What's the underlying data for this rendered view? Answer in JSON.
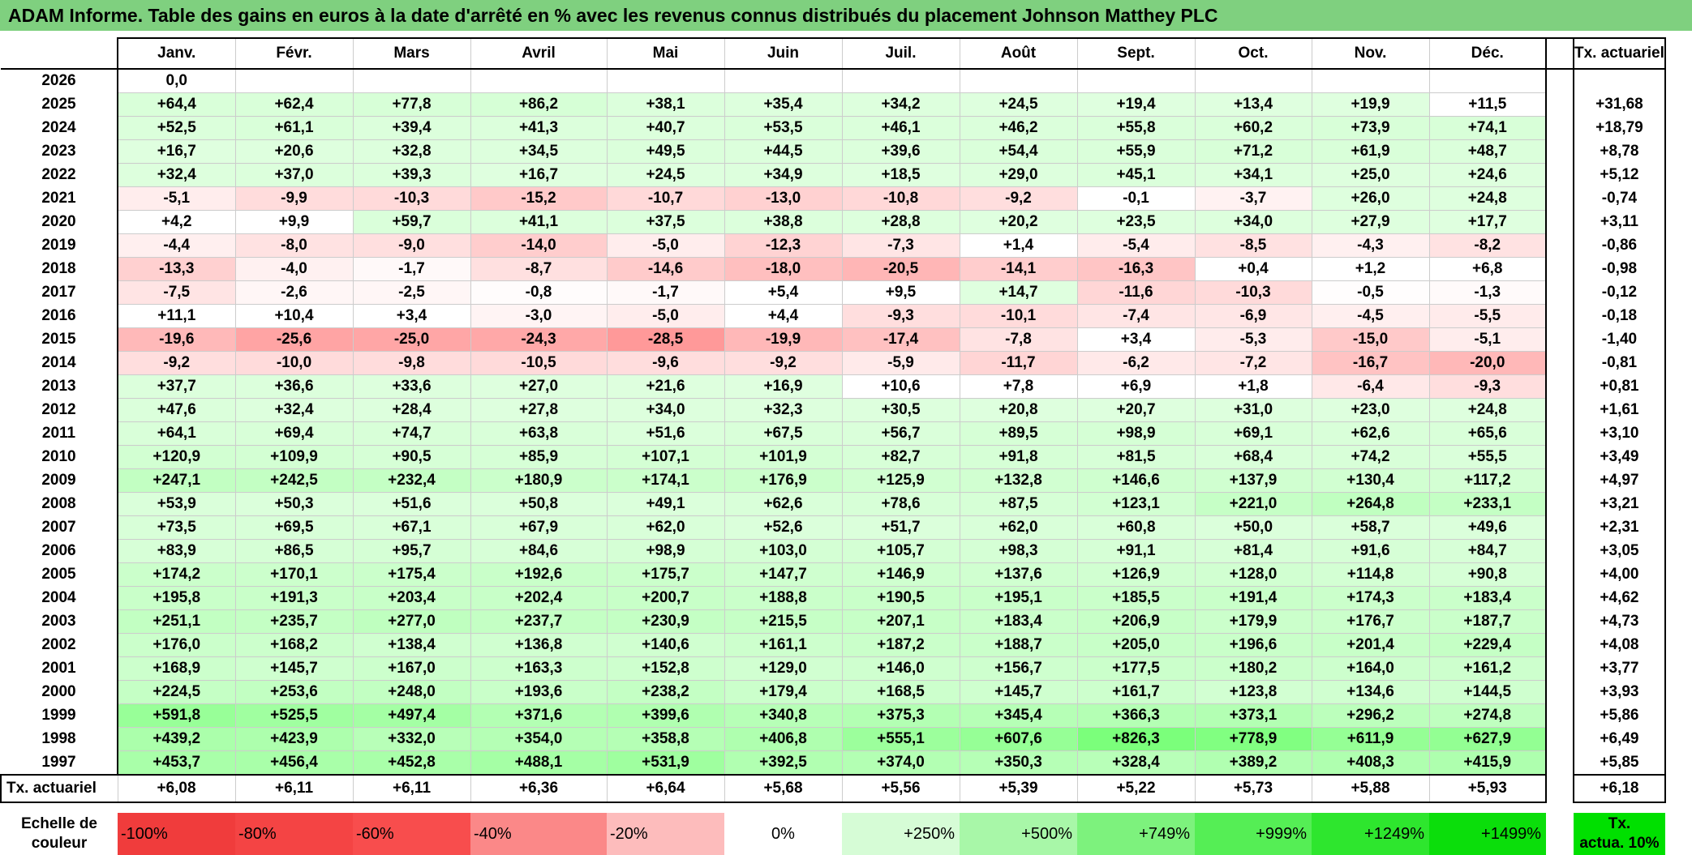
{
  "title": "ADAM Informe. Table des gains en euros à la date d'arrêté en % avec les revenus connus distribués du placement Johnson Matthey PLC",
  "months": [
    "Janv.",
    "Févr.",
    "Mars",
    "Avril",
    "Mai",
    "Juin",
    "Juil.",
    "Août",
    "Sept.",
    "Oct.",
    "Nov.",
    "Déc."
  ],
  "tx_header": "Tx. actuariel",
  "rows": [
    {
      "year": "2026",
      "values": [
        "0,0",
        "",
        "",
        "",
        "",
        "",
        "",
        "",
        "",
        "",
        "",
        ""
      ],
      "tx": ""
    },
    {
      "year": "2025",
      "values": [
        "+64,4",
        "+62,4",
        "+77,8",
        "+86,2",
        "+38,1",
        "+35,4",
        "+34,2",
        "+24,5",
        "+19,4",
        "+13,4",
        "+19,9",
        "+11,5"
      ],
      "tx": "+31,68"
    },
    {
      "year": "2024",
      "values": [
        "+52,5",
        "+61,1",
        "+39,4",
        "+41,3",
        "+40,7",
        "+53,5",
        "+46,1",
        "+46,2",
        "+55,8",
        "+60,2",
        "+73,9",
        "+74,1"
      ],
      "tx": "+18,79"
    },
    {
      "year": "2023",
      "values": [
        "+16,7",
        "+20,6",
        "+32,8",
        "+34,5",
        "+49,5",
        "+44,5",
        "+39,6",
        "+54,4",
        "+55,9",
        "+71,2",
        "+61,9",
        "+48,7"
      ],
      "tx": "+8,78"
    },
    {
      "year": "2022",
      "values": [
        "+32,4",
        "+37,0",
        "+39,3",
        "+16,7",
        "+24,5",
        "+34,9",
        "+18,5",
        "+29,0",
        "+45,1",
        "+34,1",
        "+25,0",
        "+24,6"
      ],
      "tx": "+5,12"
    },
    {
      "year": "2021",
      "values": [
        "-5,1",
        "-9,9",
        "-10,3",
        "-15,2",
        "-10,7",
        "-13,0",
        "-10,8",
        "-9,2",
        "-0,1",
        "-3,7",
        "+26,0",
        "+24,8"
      ],
      "tx": "-0,74"
    },
    {
      "year": "2020",
      "values": [
        "+4,2",
        "+9,9",
        "+59,7",
        "+41,1",
        "+37,5",
        "+38,8",
        "+28,8",
        "+20,2",
        "+23,5",
        "+34,0",
        "+27,9",
        "+17,7"
      ],
      "tx": "+3,11"
    },
    {
      "year": "2019",
      "values": [
        "-4,4",
        "-8,0",
        "-9,0",
        "-14,0",
        "-5,0",
        "-12,3",
        "-7,3",
        "+1,4",
        "-5,4",
        "-8,5",
        "-4,3",
        "-8,2"
      ],
      "tx": "-0,86"
    },
    {
      "year": "2018",
      "values": [
        "-13,3",
        "-4,0",
        "-1,7",
        "-8,7",
        "-14,6",
        "-18,0",
        "-20,5",
        "-14,1",
        "-16,3",
        "+0,4",
        "+1,2",
        "+6,8"
      ],
      "tx": "-0,98"
    },
    {
      "year": "2017",
      "values": [
        "-7,5",
        "-2,6",
        "-2,5",
        "-0,8",
        "-1,7",
        "+5,4",
        "+9,5",
        "+14,7",
        "-11,6",
        "-10,3",
        "-0,5",
        "-1,3"
      ],
      "tx": "-0,12"
    },
    {
      "year": "2016",
      "values": [
        "+11,1",
        "+10,4",
        "+3,4",
        "-3,0",
        "-5,0",
        "+4,4",
        "-9,3",
        "-10,1",
        "-7,4",
        "-6,9",
        "-4,5",
        "-5,5"
      ],
      "tx": "-0,18"
    },
    {
      "year": "2015",
      "values": [
        "-19,6",
        "-25,6",
        "-25,0",
        "-24,3",
        "-28,5",
        "-19,9",
        "-17,4",
        "-7,8",
        "+3,4",
        "-5,3",
        "-15,0",
        "-5,1"
      ],
      "tx": "-1,40"
    },
    {
      "year": "2014",
      "values": [
        "-9,2",
        "-10,0",
        "-9,8",
        "-10,5",
        "-9,6",
        "-9,2",
        "-5,9",
        "-11,7",
        "-6,2",
        "-7,2",
        "-16,7",
        "-20,0"
      ],
      "tx": "-0,81"
    },
    {
      "year": "2013",
      "values": [
        "+37,7",
        "+36,6",
        "+33,6",
        "+27,0",
        "+21,6",
        "+16,9",
        "+10,6",
        "+7,8",
        "+6,9",
        "+1,8",
        "-6,4",
        "-9,3"
      ],
      "tx": "+0,81"
    },
    {
      "year": "2012",
      "values": [
        "+47,6",
        "+32,4",
        "+28,4",
        "+27,8",
        "+34,0",
        "+32,3",
        "+30,5",
        "+20,8",
        "+20,7",
        "+31,0",
        "+23,0",
        "+24,8"
      ],
      "tx": "+1,61"
    },
    {
      "year": "2011",
      "values": [
        "+64,1",
        "+69,4",
        "+74,7",
        "+63,8",
        "+51,6",
        "+67,5",
        "+56,7",
        "+89,5",
        "+98,9",
        "+69,1",
        "+62,6",
        "+65,6"
      ],
      "tx": "+3,10"
    },
    {
      "year": "2010",
      "values": [
        "+120,9",
        "+109,9",
        "+90,5",
        "+85,9",
        "+107,1",
        "+101,9",
        "+82,7",
        "+91,8",
        "+81,5",
        "+68,4",
        "+74,2",
        "+55,5"
      ],
      "tx": "+3,49"
    },
    {
      "year": "2009",
      "values": [
        "+247,1",
        "+242,5",
        "+232,4",
        "+180,9",
        "+174,1",
        "+176,9",
        "+125,9",
        "+132,8",
        "+146,6",
        "+137,9",
        "+130,4",
        "+117,2"
      ],
      "tx": "+4,97"
    },
    {
      "year": "2008",
      "values": [
        "+53,9",
        "+50,3",
        "+51,6",
        "+50,8",
        "+49,1",
        "+62,6",
        "+78,6",
        "+87,5",
        "+123,1",
        "+221,0",
        "+264,8",
        "+233,1"
      ],
      "tx": "+3,21"
    },
    {
      "year": "2007",
      "values": [
        "+73,5",
        "+69,5",
        "+67,1",
        "+67,9",
        "+62,0",
        "+52,6",
        "+51,7",
        "+62,0",
        "+60,8",
        "+50,0",
        "+58,7",
        "+49,6"
      ],
      "tx": "+2,31"
    },
    {
      "year": "2006",
      "values": [
        "+83,9",
        "+86,5",
        "+95,7",
        "+84,6",
        "+98,9",
        "+103,0",
        "+105,7",
        "+98,3",
        "+91,1",
        "+81,4",
        "+91,6",
        "+84,7"
      ],
      "tx": "+3,05"
    },
    {
      "year": "2005",
      "values": [
        "+174,2",
        "+170,1",
        "+175,4",
        "+192,6",
        "+175,7",
        "+147,7",
        "+146,9",
        "+137,6",
        "+126,9",
        "+128,0",
        "+114,8",
        "+90,8"
      ],
      "tx": "+4,00"
    },
    {
      "year": "2004",
      "values": [
        "+195,8",
        "+191,3",
        "+203,4",
        "+202,4",
        "+200,7",
        "+188,8",
        "+190,5",
        "+195,1",
        "+185,5",
        "+191,4",
        "+174,3",
        "+183,4"
      ],
      "tx": "+4,62"
    },
    {
      "year": "2003",
      "values": [
        "+251,1",
        "+235,7",
        "+277,0",
        "+237,7",
        "+230,9",
        "+215,5",
        "+207,1",
        "+183,4",
        "+206,9",
        "+179,9",
        "+176,7",
        "+187,7"
      ],
      "tx": "+4,73"
    },
    {
      "year": "2002",
      "values": [
        "+176,0",
        "+168,2",
        "+138,4",
        "+136,8",
        "+140,6",
        "+161,1",
        "+187,2",
        "+188,7",
        "+205,0",
        "+196,6",
        "+201,4",
        "+229,4"
      ],
      "tx": "+4,08"
    },
    {
      "year": "2001",
      "values": [
        "+168,9",
        "+145,7",
        "+167,0",
        "+163,3",
        "+152,8",
        "+129,0",
        "+146,0",
        "+156,7",
        "+177,5",
        "+180,2",
        "+164,0",
        "+161,2"
      ],
      "tx": "+3,77"
    },
    {
      "year": "2000",
      "values": [
        "+224,5",
        "+253,6",
        "+248,0",
        "+193,6",
        "+238,2",
        "+179,4",
        "+168,5",
        "+145,7",
        "+161,7",
        "+123,8",
        "+134,6",
        "+144,5"
      ],
      "tx": "+3,93"
    },
    {
      "year": "1999",
      "values": [
        "+591,8",
        "+525,5",
        "+497,4",
        "+371,6",
        "+399,6",
        "+340,8",
        "+375,3",
        "+345,4",
        "+366,3",
        "+373,1",
        "+296,2",
        "+274,8"
      ],
      "tx": "+5,86"
    },
    {
      "year": "1998",
      "values": [
        "+439,2",
        "+423,9",
        "+332,0",
        "+354,0",
        "+358,8",
        "+406,8",
        "+555,1",
        "+607,6",
        "+826,3",
        "+778,9",
        "+611,9",
        "+627,9"
      ],
      "tx": "+6,49"
    },
    {
      "year": "1997",
      "values": [
        "+453,7",
        "+456,4",
        "+452,8",
        "+488,1",
        "+531,9",
        "+392,5",
        "+374,0",
        "+350,3",
        "+328,4",
        "+389,2",
        "+408,3",
        "+415,9"
      ],
      "tx": "+5,85"
    }
  ],
  "totals": {
    "label": "Tx. actuariel",
    "values": [
      "+6,08",
      "+6,11",
      "+6,11",
      "+6,36",
      "+6,64",
      "+5,68",
      "+5,56",
      "+5,39",
      "+5,22",
      "+5,73",
      "+5,88",
      "+5,93"
    ],
    "tx": "+6,18"
  },
  "scale": {
    "label_line1": "Echelle de",
    "label_line2": "couleur",
    "steps": [
      {
        "text": "-100%",
        "color": "#f03c3c",
        "align": "left"
      },
      {
        "text": "-80%",
        "color": "#f44444",
        "align": "left"
      },
      {
        "text": "-60%",
        "color": "#f84d4d",
        "align": "left"
      },
      {
        "text": "-40%",
        "color": "#fb8888",
        "align": "left"
      },
      {
        "text": "-20%",
        "color": "#fdbcbc",
        "align": "left"
      },
      {
        "text": "0%",
        "color": "#ffffff",
        "align": "center"
      },
      {
        "text": "+250%",
        "color": "#d6fcd6",
        "align": "right"
      },
      {
        "text": "+500%",
        "color": "#a8f7a8",
        "align": "right"
      },
      {
        "text": "+749%",
        "color": "#7df27d",
        "align": "right"
      },
      {
        "text": "+999%",
        "color": "#55ee55",
        "align": "right"
      },
      {
        "text": "+1249%",
        "color": "#2ee62e",
        "align": "right"
      },
      {
        "text": "+1499%",
        "color": "#0bde0b",
        "align": "right"
      }
    ],
    "tx_line1": "Tx.",
    "tx_line2": "actua. 10%",
    "tx_color": "#00e000"
  }
}
